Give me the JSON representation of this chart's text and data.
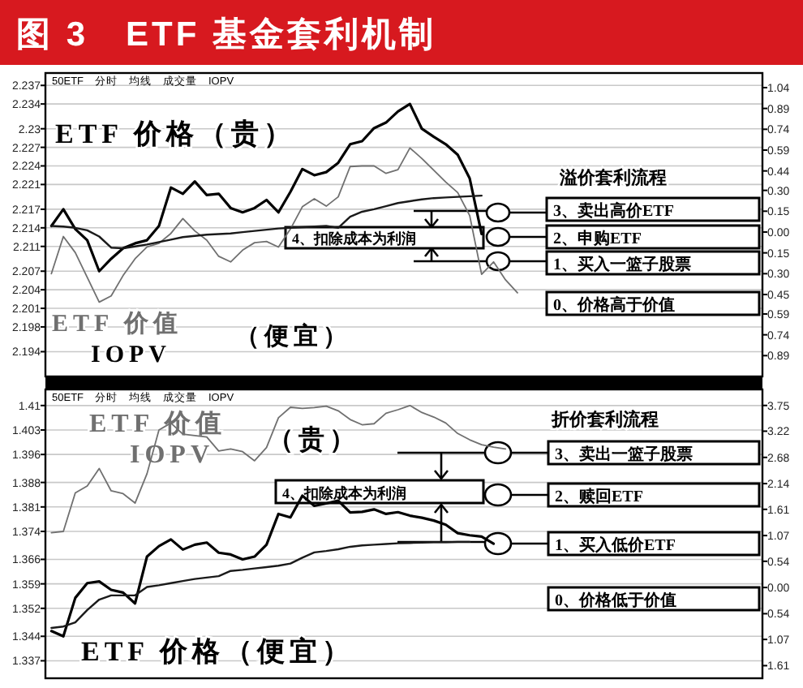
{
  "chart_data": [
    {
      "type": "line",
      "title": "图 3　ETF 基金套利机制",
      "subtitle": "50ETF　分时　均线　成交量　IOPV",
      "categories": [
        null,
        null,
        null,
        null,
        null,
        null,
        null,
        null,
        null,
        null,
        null,
        null,
        null,
        null,
        null,
        null,
        null,
        null,
        null,
        null,
        null,
        null,
        null,
        null,
        null,
        null,
        null,
        null,
        null,
        null,
        null,
        null,
        null,
        null,
        null,
        null,
        null,
        null,
        null,
        null,
        null,
        null,
        null,
        null,
        null,
        null,
        null,
        null,
        null,
        null,
        null,
        null,
        null,
        null,
        null,
        null,
        null,
        null,
        null,
        null
      ],
      "series": [
        {
          "color": "#000000",
          "values": [
            2.2143,
            2.217,
            2.2138,
            2.212,
            2.207,
            2.209,
            2.2107,
            2.2115,
            2.212,
            2.2143,
            2.2205,
            2.2195,
            2.2215,
            2.2193,
            2.2195,
            2.2172,
            2.2165,
            2.2172,
            2.2185,
            2.2165,
            2.2198,
            2.2235,
            2.2225,
            2.223,
            2.2245,
            2.2275,
            2.228,
            2.2301,
            2.231,
            2.2328,
            2.234,
            2.23,
            2.2287,
            2.2275,
            2.2258,
            2.222,
            2.213,
            null,
            null,
            null,
            null,
            null,
            null,
            null,
            null,
            null,
            null,
            null,
            null,
            null,
            null,
            null,
            null,
            null,
            null,
            null,
            null,
            null,
            null,
            null
          ]
        },
        {
          "color": "#707070",
          "values": [
            2.2066,
            2.2126,
            2.21,
            2.206,
            2.202,
            2.203,
            2.2063,
            2.209,
            2.2109,
            2.2115,
            2.2131,
            2.2155,
            2.2135,
            2.212,
            2.2094,
            2.2085,
            2.2104,
            2.2116,
            2.2118,
            2.2109,
            2.2138,
            2.2174,
            2.2187,
            2.2175,
            2.219,
            2.2239,
            2.224,
            2.224,
            2.2228,
            2.2234,
            2.2269,
            2.2252,
            2.2233,
            2.2214,
            2.2197,
            2.216,
            2.2065,
            2.2085,
            2.2056,
            2.2035,
            null,
            null,
            null,
            null,
            null,
            null,
            null,
            null,
            null,
            null,
            null,
            null,
            null,
            null,
            null,
            null,
            null,
            null,
            null,
            null
          ]
        },
        {
          "color": "#1a1a1a",
          "values": [
            2.2143,
            2.2142,
            2.214,
            2.2136,
            2.2126,
            2.2108,
            2.2107,
            2.211,
            2.2113,
            2.2117,
            2.2121,
            2.2125,
            2.2127,
            2.2129,
            2.213,
            2.2131,
            2.2133,
            2.2135,
            2.2137,
            2.2139,
            2.214,
            2.2141,
            2.2142,
            2.2143,
            2.214,
            2.2158,
            2.2166,
            2.217,
            2.2175,
            2.218,
            2.2183,
            2.2186,
            2.2188,
            2.2189,
            2.219,
            2.2191,
            2.2192,
            null,
            null,
            null,
            null,
            null,
            null,
            null,
            null,
            null,
            null,
            null,
            null,
            null,
            null,
            null,
            null,
            null,
            null,
            null,
            null,
            null,
            null,
            null
          ]
        }
      ],
      "ylim": [
        2.19,
        2.239
      ],
      "yticks": [
        2.194,
        2.198,
        2.201,
        2.204,
        2.207,
        2.211,
        2.214,
        2.217,
        2.221,
        2.224,
        2.227,
        2.23,
        2.234,
        2.237
      ],
      "y2lim": [
        -1.04,
        1.145
      ],
      "y2ticks": [
        {
          "value": -0.89,
          "label": "0.89"
        },
        {
          "value": -0.74,
          "label": "0.74"
        },
        {
          "value": -0.59,
          "label": "0.59"
        },
        {
          "value": -0.45,
          "label": "0.45"
        },
        {
          "value": -0.3,
          "label": "0.30"
        },
        {
          "value": -0.15,
          "label": "0.15"
        },
        {
          "value": 0,
          "label": "0.00"
        },
        {
          "value": 0.15,
          "label": "0.15"
        },
        {
          "value": 0.3,
          "label": "0.30"
        },
        {
          "value": 0.44,
          "label": "0.44"
        },
        {
          "value": 0.59,
          "label": "0.59"
        },
        {
          "value": 0.74,
          "label": "0.74"
        },
        {
          "value": 0.89,
          "label": "0.89"
        },
        {
          "value": 1.04,
          "label": "1.04"
        }
      ],
      "grid": "y",
      "annotations": [
        "ETF 价格（贵）",
        "ETF 价值",
        "IOPV",
        "（便宜）",
        "溢价套利流程",
        "3、卖出高价ETF",
        "2、申购ETF",
        "1、买入一篮子股票",
        "0、价格高于价值",
        "4、扣除成本为利润"
      ]
    },
    {
      "type": "line",
      "subtitle": "50ETF　分时　均线　成交量　IOPV",
      "categories": [
        null,
        null,
        null,
        null,
        null,
        null,
        null,
        null,
        null,
        null,
        null,
        null,
        null,
        null,
        null,
        null,
        null,
        null,
        null,
        null,
        null,
        null,
        null,
        null,
        null,
        null,
        null,
        null,
        null,
        null,
        null,
        null,
        null,
        null,
        null,
        null,
        null,
        null,
        null,
        null,
        null,
        null,
        null,
        null,
        null,
        null,
        null,
        null,
        null,
        null,
        null,
        null,
        null,
        null,
        null,
        null,
        null,
        null,
        null,
        null
      ],
      "series": [
        {
          "color": "#707070",
          "values": [
            1.3736,
            1.374,
            1.385,
            1.387,
            1.392,
            1.3856,
            1.3848,
            1.3821,
            1.3905,
            1.403,
            1.405,
            1.4018,
            1.4014,
            1.401,
            1.397,
            1.3976,
            1.3968,
            1.3942,
            1.398,
            1.4065,
            1.4095,
            1.4092,
            1.4094,
            1.4098,
            1.4085,
            1.406,
            1.4045,
            1.4048,
            1.4078,
            1.4088,
            1.41,
            1.408,
            1.4067,
            1.405,
            1.402,
            1.4002,
            1.3988,
            1.3981,
            1.3976,
            null,
            null,
            null,
            null,
            null,
            null,
            null,
            null,
            null,
            null,
            null,
            null,
            null,
            null,
            null,
            null,
            null,
            null,
            null,
            null,
            null
          ]
        },
        {
          "color": "#000000",
          "values": [
            1.3455,
            1.344,
            1.355,
            1.3592,
            1.3597,
            1.3573,
            1.3565,
            1.3534,
            1.3668,
            1.3698,
            1.3717,
            1.3688,
            1.3702,
            1.3708,
            1.3679,
            1.3674,
            1.366,
            1.3668,
            1.3702,
            1.379,
            1.378,
            1.3842,
            1.3813,
            1.382,
            1.3828,
            1.3794,
            1.3796,
            1.3803,
            1.379,
            1.3795,
            1.3785,
            1.3779,
            1.3771,
            1.3759,
            1.3735,
            1.3729,
            1.3725,
            1.3705,
            null,
            null,
            null,
            null,
            null,
            null,
            null,
            null,
            null,
            null,
            null,
            null,
            null,
            null,
            null,
            null,
            null,
            null,
            null,
            null,
            null,
            null
          ]
        },
        {
          "color": "#1a1a1a",
          "values": [
            1.3464,
            1.3468,
            1.348,
            1.3515,
            1.3545,
            1.3557,
            1.3557,
            1.3557,
            1.3581,
            1.3586,
            1.3592,
            1.3598,
            1.3604,
            1.3608,
            1.3612,
            1.3627,
            1.363,
            1.3634,
            1.3638,
            1.3642,
            1.3648,
            1.3665,
            1.368,
            1.3684,
            1.3689,
            1.3696,
            1.37,
            1.3702,
            1.3704,
            1.3706,
            1.3707,
            1.3708,
            1.3709,
            1.3709,
            1.371,
            1.371,
            null,
            null,
            null,
            null,
            null,
            null,
            null,
            null,
            null,
            null,
            null,
            null,
            null,
            null,
            null,
            null,
            null,
            null,
            null,
            null,
            null,
            null,
            null,
            null
          ]
        }
      ],
      "ylim": [
        1.332,
        1.4146
      ],
      "yticks": [
        1.337,
        1.344,
        1.352,
        1.359,
        1.366,
        1.374,
        1.381,
        1.388,
        1.396,
        1.403,
        1.41
      ],
      "y2lim": [
        -1.87,
        4.08
      ],
      "y2ticks": [
        {
          "value": -1.61,
          "label": "1.61"
        },
        {
          "value": -1.07,
          "label": "1.07"
        },
        {
          "value": -0.54,
          "label": "0.54"
        },
        {
          "value": 0,
          "label": "0.00"
        },
        {
          "value": 0.54,
          "label": "0.54"
        },
        {
          "value": 1.07,
          "label": "1.07"
        },
        {
          "value": 1.61,
          "label": "1.61"
        },
        {
          "value": 2.14,
          "label": "2.14"
        },
        {
          "value": 2.68,
          "label": "2.68"
        },
        {
          "value": 3.22,
          "label": "3.22"
        },
        {
          "value": 3.75,
          "label": "3.75"
        }
      ],
      "grid": "y",
      "annotations": [
        "ETF 价值",
        "IOPV",
        "（贵）",
        "折价套利流程",
        "3、卖出一篮子股票",
        "2、赎回ETF",
        "1、买入低价ETF",
        "0、价格低于价值",
        "4、扣除成本为利润",
        "ETF 价格（便宜）"
      ]
    }
  ]
}
